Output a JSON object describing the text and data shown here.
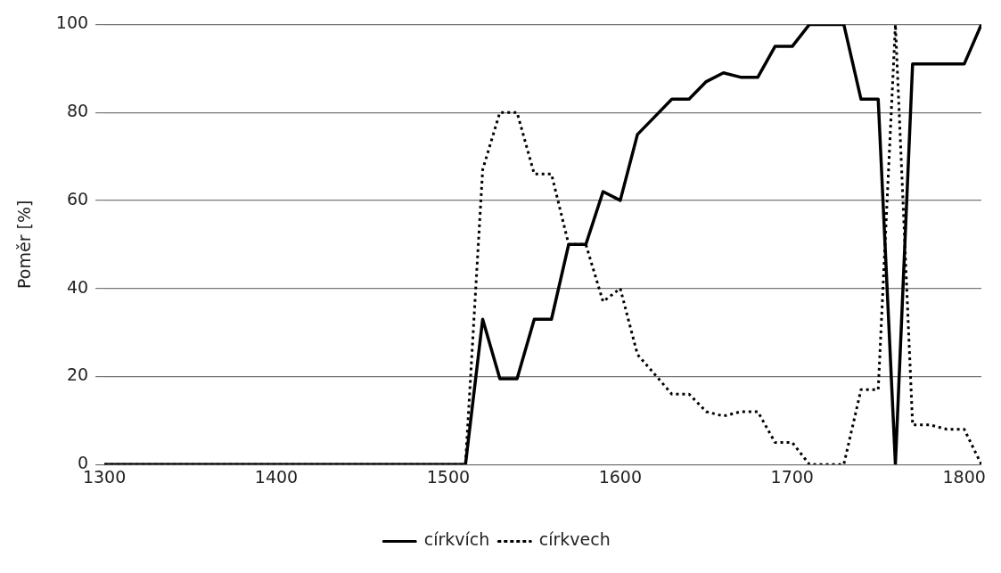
{
  "chart_data": {
    "type": "line",
    "ylabel": "Poměr [%]",
    "x": [
      1300,
      1310,
      1320,
      1330,
      1340,
      1350,
      1360,
      1370,
      1380,
      1390,
      1400,
      1410,
      1420,
      1430,
      1440,
      1450,
      1460,
      1470,
      1480,
      1490,
      1500,
      1510,
      1520,
      1530,
      1540,
      1550,
      1560,
      1570,
      1580,
      1590,
      1600,
      1610,
      1620,
      1630,
      1640,
      1650,
      1660,
      1670,
      1680,
      1690,
      1700,
      1710,
      1720,
      1730,
      1740,
      1750,
      1760,
      1770,
      1780,
      1790,
      1800,
      1810
    ],
    "series": [
      {
        "name": "církvích",
        "color": "#000000",
        "line_style": "solid",
        "values": [
          0,
          0,
          0,
          0,
          0,
          0,
          0,
          0,
          0,
          0,
          0,
          0,
          0,
          0,
          0,
          0,
          0,
          0,
          0,
          0,
          0,
          0,
          33,
          19.5,
          19.5,
          33,
          33,
          50,
          50,
          62,
          60,
          75,
          79,
          83,
          83,
          87,
          89,
          88,
          88,
          95,
          95,
          100,
          100,
          100,
          83,
          83,
          0,
          91,
          91,
          91,
          91,
          100
        ]
      },
      {
        "name": "církvech",
        "color": "#000000",
        "line_style": "dotted",
        "values": [
          0,
          0,
          0,
          0,
          0,
          0,
          0,
          0,
          0,
          0,
          0,
          0,
          0,
          0,
          0,
          0,
          0,
          0,
          0,
          0,
          0,
          0,
          67,
          80,
          80,
          66,
          66,
          50,
          50,
          37,
          40,
          25,
          20.5,
          16,
          16,
          12,
          11,
          12,
          12,
          5,
          5,
          0,
          0,
          0,
          17,
          17,
          100,
          9,
          9,
          8,
          8,
          0
        ]
      }
    ],
    "xlim": [
      1300,
      1810
    ],
    "xticks": [
      1300,
      1400,
      1500,
      1600,
      1700,
      1800
    ],
    "ylim": [
      0,
      100
    ],
    "yticks": [
      0,
      20,
      40,
      60,
      80,
      100
    ],
    "grid": "y",
    "legend": "bottom",
    "marker": "none"
  }
}
